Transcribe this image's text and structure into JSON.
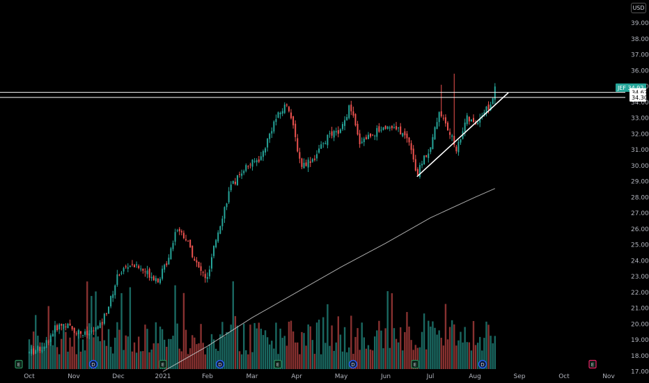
{
  "currency": "USD",
  "colors": {
    "up": "#26a69a",
    "down": "#ef5350",
    "vol_up": "#1e7a72",
    "vol_down": "#a03a38",
    "ma": "#cccccc",
    "lines": "#ffffff",
    "ticker_badge": "#26a69a",
    "dividend": "#2962ff",
    "earnings": "#2a8a5a",
    "earnings_future": "#e91e63"
  },
  "badges": {
    "ticker": "JEF",
    "ticker_price": "34.92",
    "level_upper": "34.62",
    "level_lower": "34.30"
  },
  "event_markers": [
    {
      "label": "E",
      "x": "Oct",
      "kind": "earnings"
    },
    {
      "label": "D",
      "x": "Nov",
      "kind": "dividend"
    },
    {
      "label": "E",
      "x": "2021",
      "kind": "earnings"
    },
    {
      "label": "D",
      "x": "Feb",
      "kind": "dividend"
    },
    {
      "label": "E",
      "x": "Apr",
      "kind": "earnings"
    },
    {
      "label": "D",
      "x": "May",
      "kind": "dividend"
    },
    {
      "label": "E",
      "x": "Jul",
      "kind": "earnings"
    },
    {
      "label": "D",
      "x": "Aug",
      "kind": "dividend"
    },
    {
      "label": "E",
      "x": "Oct",
      "kind": "earnings_future"
    }
  ],
  "chart_data": {
    "type": "candlestick",
    "symbol": "JEF",
    "y_axis": {
      "ticks": [
        "17.00",
        "18.00",
        "19.00",
        "20.00",
        "21.00",
        "22.00",
        "23.00",
        "24.00",
        "25.00",
        "26.00",
        "27.00",
        "28.00",
        "29.00",
        "30.00",
        "31.00",
        "32.00",
        "33.00",
        "34.00",
        "35.00",
        "36.00",
        "37.00",
        "38.00",
        "39.00"
      ],
      "range": [
        16.75,
        39.75
      ],
      "position": "right"
    },
    "x_axis": {
      "ticks": [
        "Oct",
        "Nov",
        "Dec",
        "2021",
        "Feb",
        "Mar",
        "Apr",
        "May",
        "Jun",
        "Jul",
        "Aug",
        "Sep",
        "Oct",
        "Nov"
      ]
    },
    "price_path": [
      [
        0,
        18.2
      ],
      [
        0.3,
        18.5
      ],
      [
        0.6,
        19.8
      ],
      [
        0.8,
        20.0
      ],
      [
        1.0,
        19.6
      ],
      [
        1.3,
        19.3
      ],
      [
        1.6,
        19.9
      ],
      [
        1.8,
        21.3
      ],
      [
        2.0,
        23.2
      ],
      [
        2.3,
        23.8
      ],
      [
        2.6,
        23.3
      ],
      [
        2.9,
        22.8
      ],
      [
        3.1,
        24.0
      ],
      [
        3.3,
        26.1
      ],
      [
        3.5,
        25.5
      ],
      [
        3.8,
        23.5
      ],
      [
        4.0,
        22.8
      ],
      [
        4.2,
        25.5
      ],
      [
        4.5,
        28.5
      ],
      [
        4.8,
        29.8
      ],
      [
        5.2,
        30.5
      ],
      [
        5.5,
        32.8
      ],
      [
        5.8,
        34.0
      ],
      [
        5.95,
        32.0
      ],
      [
        6.1,
        30.0
      ],
      [
        6.4,
        30.5
      ],
      [
        6.7,
        31.8
      ],
      [
        7.0,
        32.2
      ],
      [
        7.2,
        33.8
      ],
      [
        7.4,
        31.5
      ],
      [
        7.7,
        32.0
      ],
      [
        8.0,
        32.5
      ],
      [
        8.3,
        32.2
      ],
      [
        8.55,
        31.5
      ],
      [
        8.7,
        29.3
      ],
      [
        8.85,
        30.5
      ],
      [
        9.0,
        31.0
      ],
      [
        9.2,
        33.5
      ],
      [
        9.4,
        32.2
      ],
      [
        9.6,
        31.0
      ],
      [
        9.8,
        33.0
      ],
      [
        10.0,
        32.6
      ],
      [
        10.2,
        33.4
      ],
      [
        10.35,
        33.8
      ],
      [
        10.45,
        34.8
      ]
    ],
    "candle_count": 218,
    "spike_highs": [
      [
        9.55,
        35.8
      ],
      [
        9.25,
        35.1
      ]
    ],
    "moving_average": [
      [
        3.0,
        17.0
      ],
      [
        4.0,
        18.6
      ],
      [
        5.0,
        20.4
      ],
      [
        6.0,
        22.0
      ],
      [
        7.0,
        23.6
      ],
      [
        8.0,
        25.1
      ],
      [
        9.0,
        26.7
      ],
      [
        10.0,
        28.0
      ],
      [
        10.45,
        28.55
      ]
    ],
    "horizontal_levels": [
      34.62,
      34.3
    ],
    "trendline": {
      "from": [
        8.7,
        29.3
      ],
      "to": [
        10.75,
        34.6
      ]
    },
    "volume_max_ratio": 0.9
  }
}
